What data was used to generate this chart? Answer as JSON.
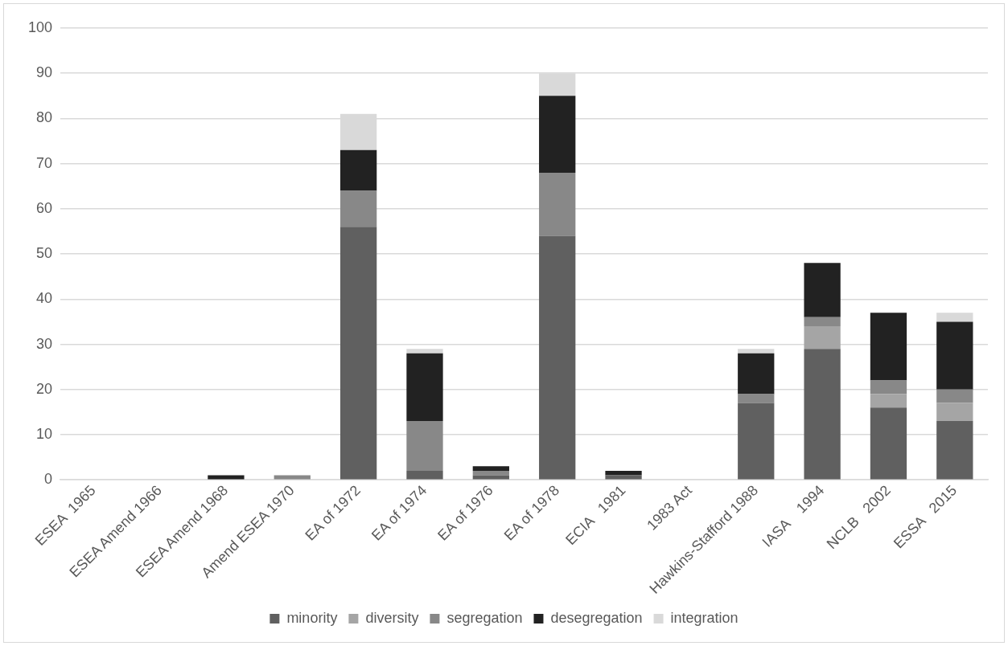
{
  "chart_data": {
    "type": "bar",
    "stacked": true,
    "categories": [
      "ESEA  1965",
      "ESEA Amend 1966",
      "ESEA Amend 1968",
      "Amend ESEA 1970",
      "EA of 1972",
      "EA of 1974",
      "EA of 1976",
      "EA of 1978",
      "ECIA   1981",
      "1983 Act",
      "Hawkins-Stafford 1988",
      "IASA    1994",
      "NCLB   2002",
      "ESSA   2015"
    ],
    "series": [
      {
        "name": "minority",
        "color": "#606060",
        "values": [
          0,
          0,
          0,
          0,
          56,
          2,
          1,
          54,
          1,
          0,
          17,
          29,
          16,
          13
        ]
      },
      {
        "name": "diversity",
        "color": "#a5a5a5",
        "values": [
          0,
          0,
          0,
          0,
          0,
          0,
          0,
          0,
          0,
          0,
          0,
          5,
          3,
          4
        ]
      },
      {
        "name": "segregation",
        "color": "#888888",
        "values": [
          0,
          0,
          0,
          1,
          8,
          11,
          1,
          14,
          0,
          0,
          2,
          2,
          3,
          3
        ]
      },
      {
        "name": "desegregation",
        "color": "#222222",
        "values": [
          0,
          0,
          1,
          0,
          9,
          15,
          1,
          17,
          1,
          0,
          9,
          12,
          15,
          15
        ]
      },
      {
        "name": "integration",
        "color": "#d9d9d9",
        "values": [
          0,
          0,
          0,
          0,
          8,
          1,
          0,
          5,
          0,
          0,
          1,
          0,
          0,
          2
        ]
      }
    ],
    "ylim": [
      0,
      100
    ],
    "yticks": [
      0,
      10,
      20,
      30,
      40,
      50,
      60,
      70,
      80,
      90,
      100
    ],
    "grid": "y",
    "legend": "bottom"
  }
}
